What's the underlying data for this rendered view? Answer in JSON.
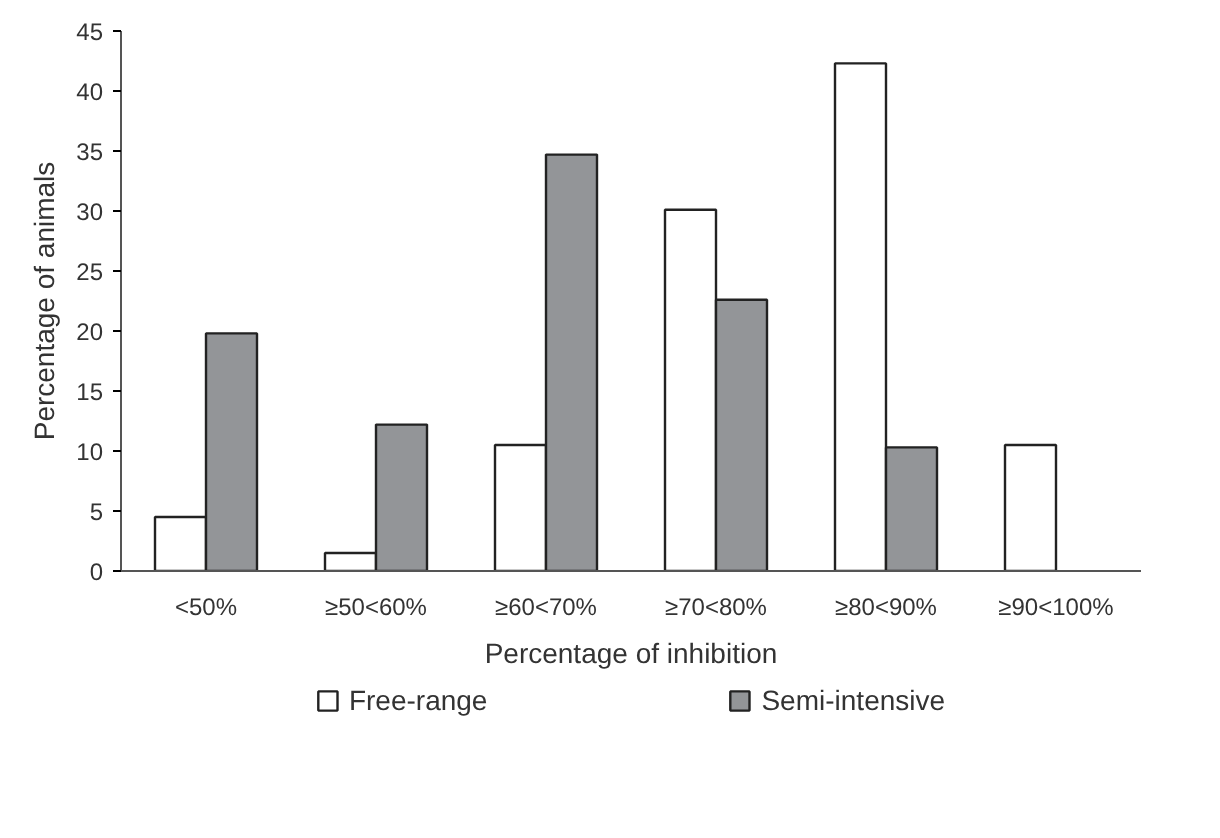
{
  "chart_data": {
    "type": "bar",
    "xlabel": "Percentage of inhibition",
    "ylabel": "Percentage of animals",
    "categories": [
      "<50%",
      "≥50<60%",
      "≥60<70%",
      "≥70<80%",
      "≥80<90%",
      "≥90<100%"
    ],
    "series": [
      {
        "name": "Free-range",
        "color": "#ffffff",
        "values": [
          4.5,
          1.5,
          10.5,
          30.1,
          42.3,
          10.5
        ]
      },
      {
        "name": "Semi-intensive",
        "color": "#939598",
        "values": [
          19.8,
          12.2,
          34.7,
          22.6,
          10.3,
          null
        ]
      }
    ],
    "ylim": [
      0,
      45
    ],
    "yticks": [
      0,
      5,
      10,
      15,
      20,
      25,
      30,
      35,
      40,
      45
    ],
    "grid": false,
    "legend": "bottom"
  }
}
